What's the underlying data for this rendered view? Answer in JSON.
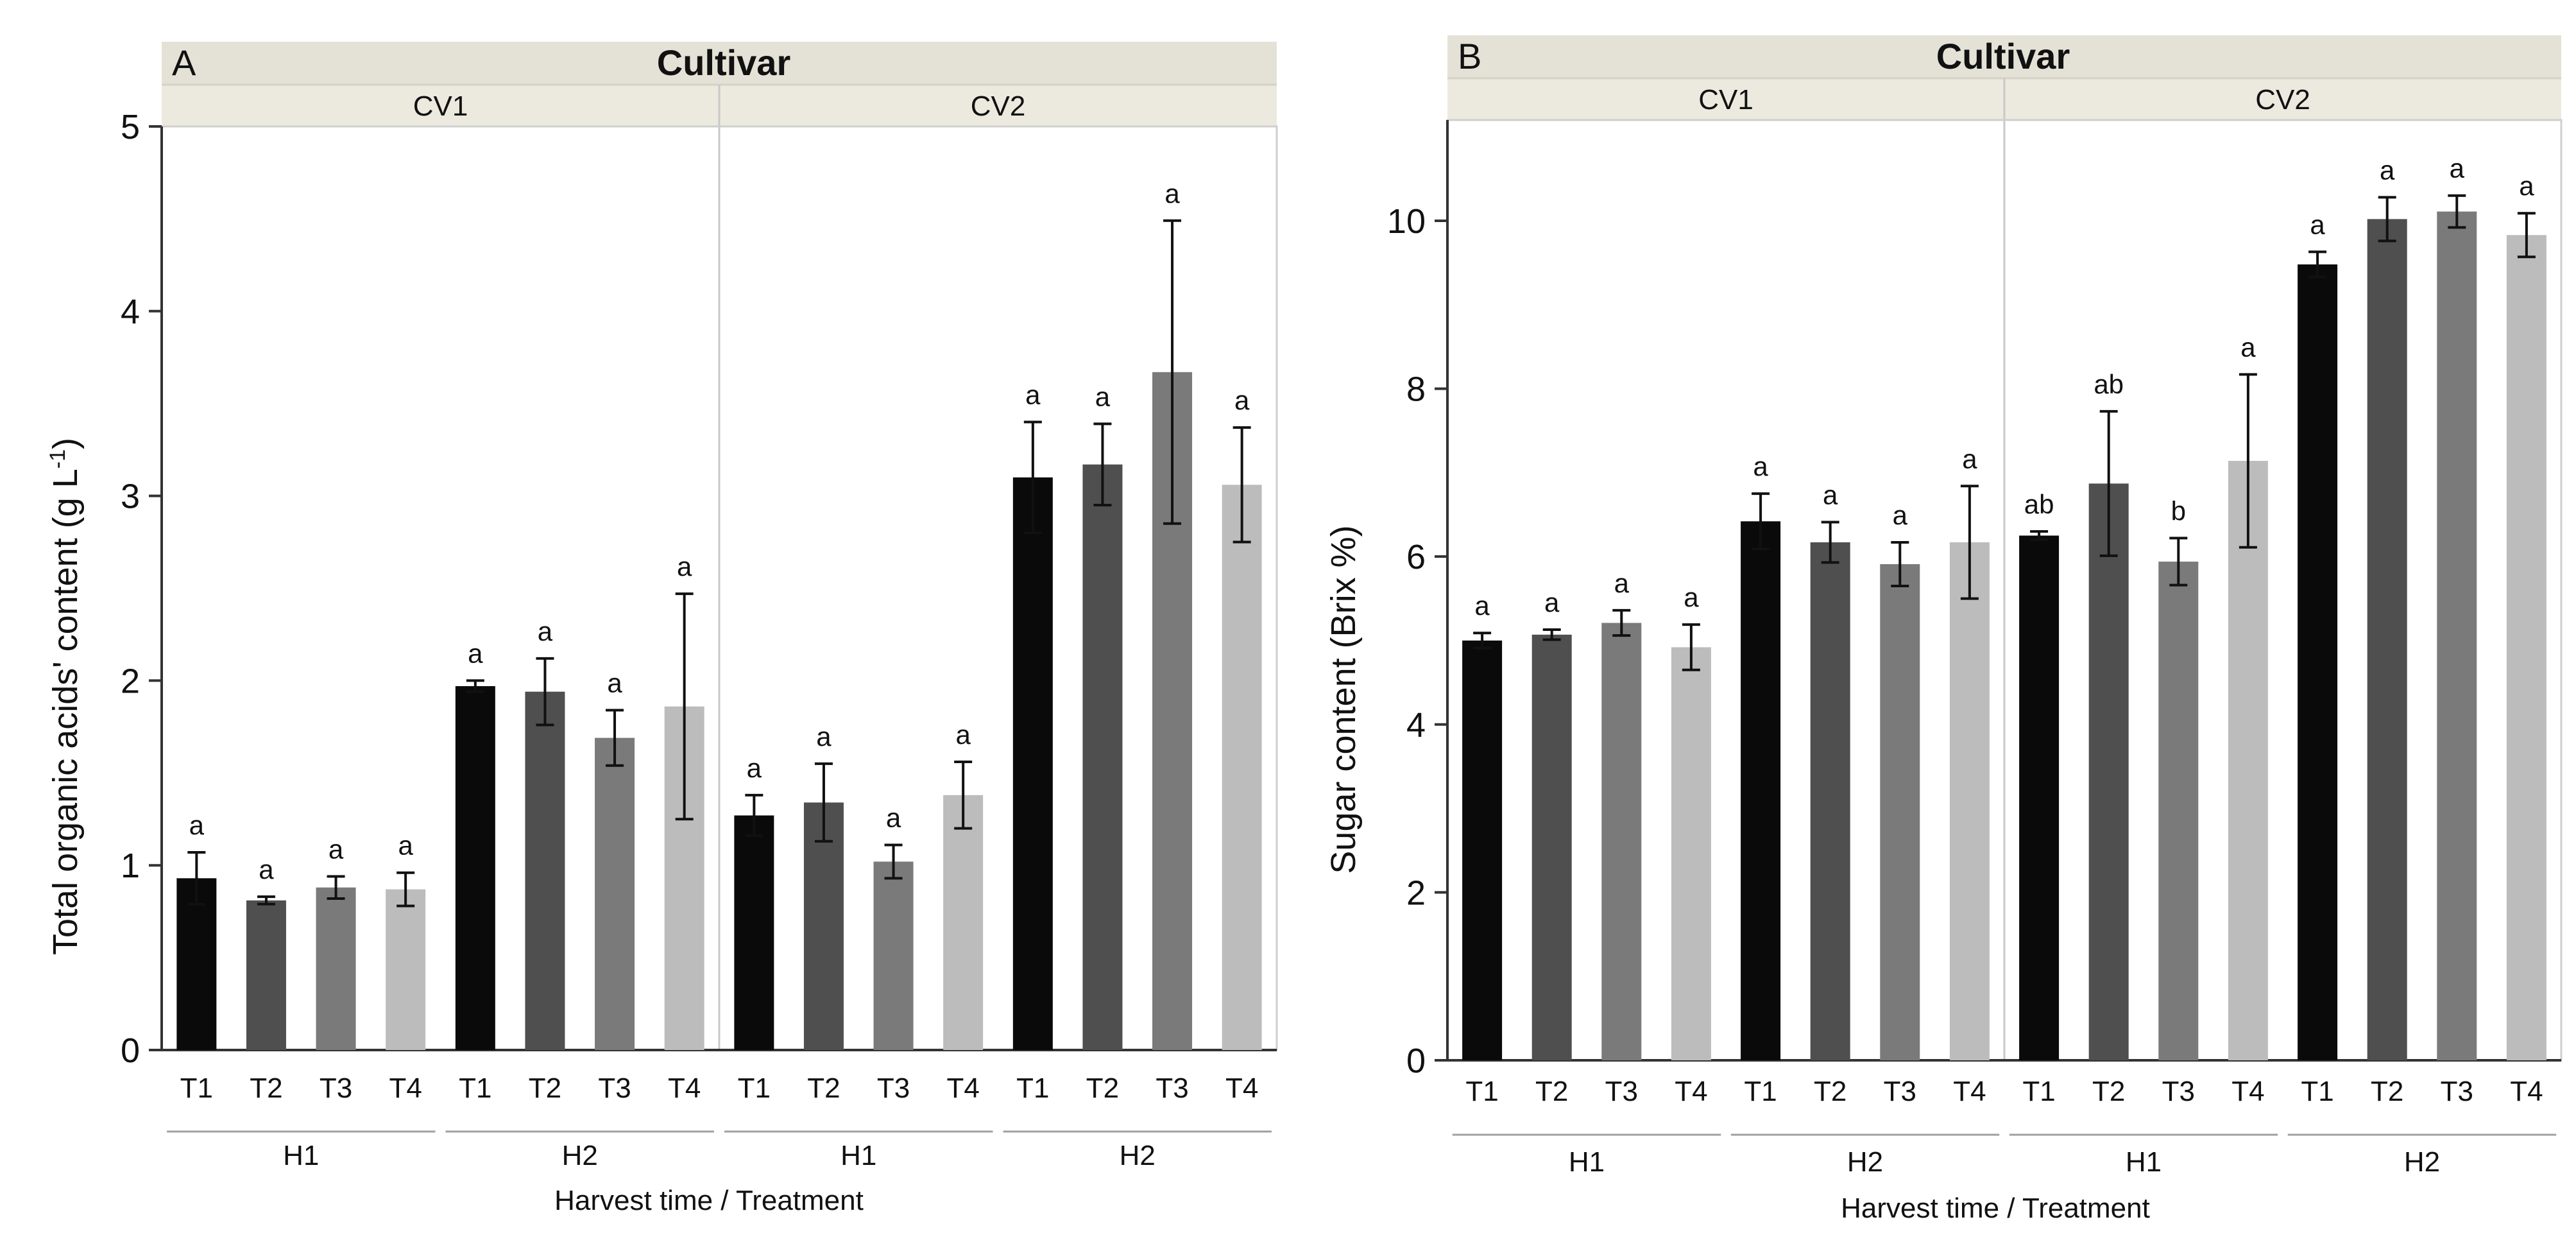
{
  "colors": {
    "T1": "#0a0a0a",
    "T2": "#4f4f4f",
    "T3": "#7a7a7a",
    "T4": "#bcbcbc"
  },
  "chart_data": [
    {
      "type": "bar",
      "panel_label": "A",
      "strip_title": "Cultivar",
      "cultivars": [
        "CV1",
        "CV2"
      ],
      "harvests": [
        "H1",
        "H2"
      ],
      "treatments": [
        "T1",
        "T2",
        "T3",
        "T4"
      ],
      "xlabel": "Harvest time / Treatment",
      "ylabel": "Total organic acids' content (g L",
      "ylabel_sup": "-1",
      "ylabel_close": ")",
      "ylim": [
        0,
        5
      ],
      "yticks": [
        "0",
        "1",
        "2",
        "3",
        "4",
        "5"
      ],
      "series": [
        {
          "cultivar": "CV1",
          "harvest": "H1",
          "values": [
            0.93,
            0.81,
            0.88,
            0.87
          ],
          "errors": [
            0.14,
            0.02,
            0.06,
            0.09
          ],
          "letters": [
            "a",
            "a",
            "a",
            "a"
          ]
        },
        {
          "cultivar": "CV1",
          "harvest": "H2",
          "values": [
            1.97,
            1.94,
            1.69,
            1.86
          ],
          "errors": [
            0.03,
            0.18,
            0.15,
            0.61
          ],
          "letters": [
            "a",
            "a",
            "a",
            "a"
          ]
        },
        {
          "cultivar": "CV2",
          "harvest": "H1",
          "values": [
            1.27,
            1.34,
            1.02,
            1.38
          ],
          "errors": [
            0.11,
            0.21,
            0.09,
            0.18
          ],
          "letters": [
            "a",
            "a",
            "a",
            "a"
          ]
        },
        {
          "cultivar": "CV2",
          "harvest": "H2",
          "values": [
            3.1,
            3.17,
            3.67,
            3.06
          ],
          "errors": [
            0.3,
            0.22,
            0.82,
            0.31
          ],
          "letters": [
            "a",
            "a",
            "a",
            "a"
          ]
        }
      ]
    },
    {
      "type": "bar",
      "panel_label": "B",
      "strip_title": "Cultivar",
      "cultivars": [
        "CV1",
        "CV2"
      ],
      "harvests": [
        "H1",
        "H2"
      ],
      "treatments": [
        "T1",
        "T2",
        "T3",
        "T4"
      ],
      "xlabel": "Harvest time / Treatment",
      "ylabel": "Sugar content (Brix %)",
      "ylabel_sup": "",
      "ylabel_close": "",
      "ylim": [
        0,
        11.2
      ],
      "yticks": [
        "0",
        "2",
        "4",
        "6",
        "8",
        "10"
      ],
      "series": [
        {
          "cultivar": "CV1",
          "harvest": "H1",
          "values": [
            5.0,
            5.07,
            5.21,
            4.92
          ],
          "errors": [
            0.09,
            0.06,
            0.15,
            0.27
          ],
          "letters": [
            "a",
            "a",
            "a",
            "a"
          ]
        },
        {
          "cultivar": "CV1",
          "harvest": "H2",
          "values": [
            6.42,
            6.17,
            5.91,
            6.17
          ],
          "errors": [
            0.33,
            0.24,
            0.26,
            0.67
          ],
          "letters": [
            "a",
            "a",
            "a",
            "a"
          ]
        },
        {
          "cultivar": "CV2",
          "harvest": "H1",
          "values": [
            6.25,
            6.87,
            5.94,
            7.14
          ],
          "errors": [
            0.05,
            0.86,
            0.28,
            1.03
          ],
          "letters": [
            "ab",
            "ab",
            "b",
            "a"
          ]
        },
        {
          "cultivar": "CV2",
          "harvest": "H2",
          "values": [
            9.48,
            10.02,
            10.11,
            9.83
          ],
          "errors": [
            0.15,
            0.26,
            0.19,
            0.26
          ],
          "letters": [
            "a",
            "a",
            "a",
            "a"
          ]
        }
      ]
    }
  ]
}
